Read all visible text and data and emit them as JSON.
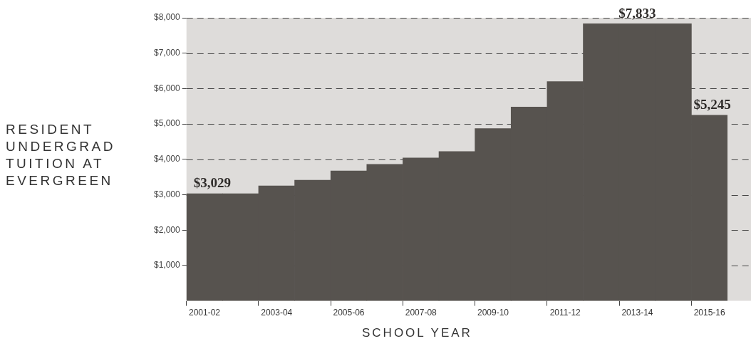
{
  "chart_data": {
    "type": "bar",
    "xlabel": "SCHOOL YEAR",
    "ylabel": "RESIDENT UNDERGRAD TUITION AT EVERGREEN",
    "categories": [
      "2001-02",
      null,
      "2003-04",
      null,
      "2005-06",
      null,
      "2007-08",
      null,
      "2009-10",
      null,
      "2011-12",
      null,
      "2013-14",
      null,
      "2015-16"
    ],
    "values": [
      3029,
      3029,
      3250,
      3410,
      3670,
      3860,
      4040,
      4220,
      4870,
      5480,
      6200,
      7833,
      7833,
      7833,
      5245
    ],
    "value_labels": [
      "$3,029",
      null,
      null,
      null,
      null,
      null,
      null,
      null,
      null,
      null,
      null,
      null,
      "$7,833",
      null,
      "$5,245"
    ],
    "color": "#57534f",
    "ylim": [
      0,
      8000
    ],
    "yticks": [
      {
        "value": 1000,
        "label": "$1,000"
      },
      {
        "value": 2000,
        "label": "$2,000"
      },
      {
        "value": 3000,
        "label": "$3,000"
      },
      {
        "value": 4000,
        "label": "$4,000"
      },
      {
        "value": 5000,
        "label": "$5,000"
      },
      {
        "value": 6000,
        "label": "$6,000"
      },
      {
        "value": 7000,
        "label": "$7,000"
      },
      {
        "value": 8000,
        "label": "$8,000"
      }
    ],
    "grid": "y",
    "legend": false
  }
}
